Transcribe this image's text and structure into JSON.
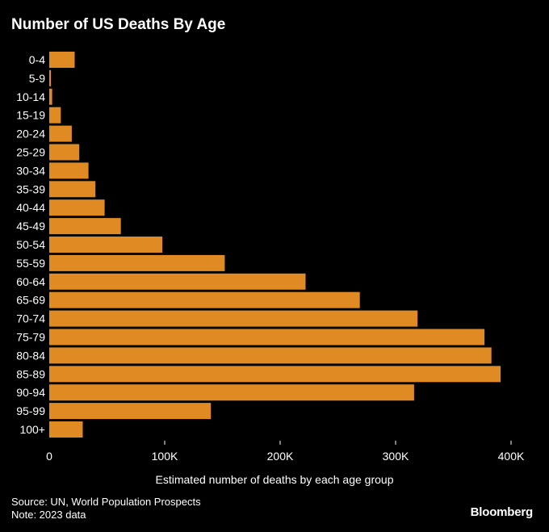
{
  "title": "Number of US Deaths By Age",
  "source": "Source: UN, World Population Prospects",
  "note": "Note: 2023 data",
  "brand": "Bloomberg",
  "colors": {
    "bar": "#e08a23",
    "background": "#000000",
    "text": "#ffffff"
  },
  "chart_data": {
    "type": "bar",
    "orientation": "horizontal",
    "title": "Number of US Deaths By Age",
    "xlabel": "Estimated number of deaths by each age group",
    "ylabel": "",
    "categories": [
      "0-4",
      "5-9",
      "10-14",
      "15-19",
      "20-24",
      "25-29",
      "30-34",
      "35-39",
      "40-44",
      "45-49",
      "50-54",
      "55-59",
      "60-64",
      "65-69",
      "70-74",
      "75-79",
      "80-84",
      "85-89",
      "90-94",
      "95-99",
      "100+"
    ],
    "values": [
      22000,
      1500,
      2500,
      10000,
      19500,
      26000,
      34000,
      40000,
      48000,
      62000,
      98000,
      152000,
      222000,
      269000,
      319000,
      377000,
      383000,
      391000,
      316000,
      140000,
      29000
    ],
    "xlim": [
      0,
      400000
    ],
    "xticks": [
      0,
      100000,
      200000,
      300000,
      400000
    ],
    "xtick_labels": [
      "0",
      "100K",
      "200K",
      "300K",
      "400K"
    ],
    "grid": false,
    "legend": "none"
  }
}
